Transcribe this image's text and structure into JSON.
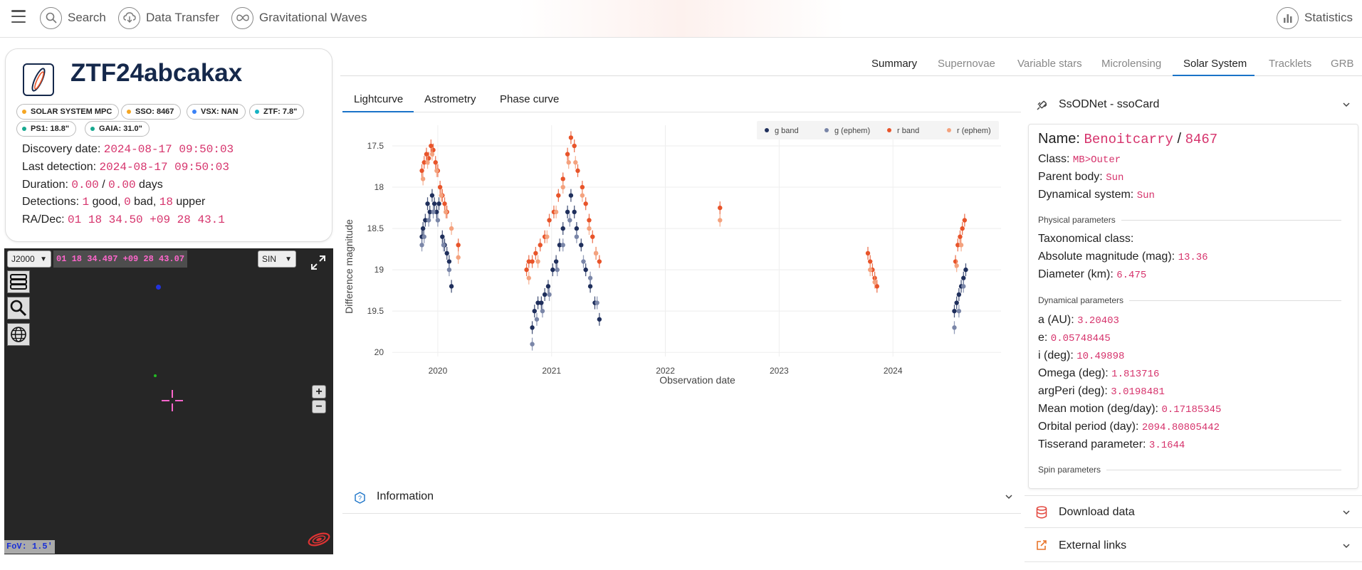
{
  "topnav": {
    "search_label": "Search",
    "data_transfer_label": "Data Transfer",
    "gw_label": "Gravitational Waves",
    "statistics_label": "Statistics"
  },
  "object": {
    "name": "ZTF24abcakax",
    "badges": [
      {
        "label": "SOLAR SYSTEM MPC",
        "color": "#f5a623"
      },
      {
        "label": "SSO: 8467",
        "color": "#f5a623"
      },
      {
        "label": "VSX: NAN",
        "color": "#3b82f6"
      },
      {
        "label": "ZTF: 7.8\"",
        "color": "#17b3c4"
      },
      {
        "label": "PS1: 18.8\"",
        "color": "#17a88f"
      },
      {
        "label": "GAIA: 31.0\"",
        "color": "#17a88f"
      }
    ],
    "discovery_label": "Discovery date:",
    "discovery_value": "2024-08-17 09:50:03",
    "last_label": "Last detection:",
    "last_value": "2024-08-17 09:50:03",
    "duration_label": "Duration:",
    "duration_a": "0.00",
    "duration_sep": "/",
    "duration_b": "0.00",
    "duration_unit": "days",
    "detections_label": "Detections:",
    "det_good": "1",
    "det_good_label": "good,",
    "det_bad": "0",
    "det_bad_label": "bad,",
    "det_upper": "18",
    "det_upper_label": "upper",
    "radec_label": "RA/Dec:",
    "radec_value": "01 18 34.50 +09 28 43.1"
  },
  "aladin": {
    "frame": "J2000",
    "coords": "01 18 34.497 +09 28 43.07",
    "projection": "SIN",
    "fov": "FoV: 1.5'",
    "zoom_in": "+",
    "zoom_out": "−"
  },
  "tabs": [
    "Summary",
    "Supernovae",
    "Variable stars",
    "Microlensing",
    "Solar System",
    "Tracklets",
    "GRB"
  ],
  "active_tab": "Solar System",
  "subtabs": [
    "Lightcurve",
    "Astrometry",
    "Phase curve"
  ],
  "active_subtab": "Lightcurve",
  "chart_data": {
    "type": "scatter",
    "xlabel": "Observation date",
    "ylabel": "Difference magnitude",
    "x_ticks": [
      "2020",
      "2021",
      "2022",
      "2023",
      "2024"
    ],
    "y_ticks": [
      "17.5",
      "18",
      "18.5",
      "19",
      "19.5",
      "20"
    ],
    "ylim": [
      20.05,
      17.25
    ],
    "xlim": [
      2019.6,
      2024.95
    ],
    "y_reversed": true,
    "grid": true,
    "legend_position": "top-right",
    "series": [
      {
        "name": "g band",
        "color": "#1f2f5c",
        "points": [
          [
            2019.86,
            18.6
          ],
          [
            2019.87,
            18.5
          ],
          [
            2019.89,
            18.4
          ],
          [
            2019.91,
            18.2
          ],
          [
            2019.93,
            18.3
          ],
          [
            2019.95,
            18.1
          ],
          [
            2019.97,
            18.2
          ],
          [
            2019.99,
            18.3
          ],
          [
            2020.01,
            18.2
          ],
          [
            2020.04,
            18.6
          ],
          [
            2020.06,
            18.7
          ],
          [
            2020.08,
            18.8
          ],
          [
            2020.1,
            18.9
          ],
          [
            2020.12,
            19.2
          ],
          [
            2020.83,
            19.7
          ],
          [
            2020.85,
            19.5
          ],
          [
            2020.88,
            19.4
          ],
          [
            2020.91,
            19.4
          ],
          [
            2020.94,
            19.3
          ],
          [
            2020.97,
            19.2
          ],
          [
            2021.01,
            19.0
          ],
          [
            2021.04,
            18.9
          ],
          [
            2021.07,
            18.7
          ],
          [
            2021.1,
            18.5
          ],
          [
            2021.14,
            18.3
          ],
          [
            2021.17,
            18.1
          ],
          [
            2021.2,
            18.3
          ],
          [
            2021.22,
            18.5
          ],
          [
            2021.26,
            18.7
          ],
          [
            2021.3,
            19.0
          ],
          [
            2021.34,
            19.2
          ],
          [
            2021.38,
            19.4
          ],
          [
            2021.42,
            19.6
          ],
          [
            2024.54,
            19.5
          ],
          [
            2024.56,
            19.4
          ],
          [
            2024.58,
            19.3
          ],
          [
            2024.6,
            19.2
          ],
          [
            2024.62,
            19.1
          ],
          [
            2024.64,
            19.0
          ]
        ]
      },
      {
        "name": "g (ephem)",
        "color": "#7a86a8",
        "points": [
          [
            2019.86,
            18.7
          ],
          [
            2019.88,
            18.6
          ],
          [
            2019.92,
            18.4
          ],
          [
            2019.96,
            18.3
          ],
          [
            2020.0,
            18.4
          ],
          [
            2020.05,
            18.7
          ],
          [
            2020.1,
            19.0
          ],
          [
            2020.83,
            19.9
          ],
          [
            2020.87,
            19.6
          ],
          [
            2020.92,
            19.5
          ],
          [
            2020.98,
            19.3
          ],
          [
            2021.05,
            19.0
          ],
          [
            2021.1,
            18.7
          ],
          [
            2021.16,
            18.4
          ],
          [
            2021.22,
            18.6
          ],
          [
            2021.28,
            18.9
          ],
          [
            2021.34,
            19.1
          ],
          [
            2021.4,
            19.4
          ],
          [
            2024.54,
            19.7
          ],
          [
            2024.58,
            19.5
          ],
          [
            2024.62,
            19.2
          ]
        ]
      },
      {
        "name": "r band",
        "color": "#e8542a",
        "points": [
          [
            2019.86,
            17.8
          ],
          [
            2019.88,
            17.7
          ],
          [
            2019.9,
            17.6
          ],
          [
            2019.92,
            17.65
          ],
          [
            2019.94,
            17.5
          ],
          [
            2019.96,
            17.55
          ],
          [
            2019.98,
            17.7
          ],
          [
            2020.0,
            17.8
          ],
          [
            2020.02,
            18.0
          ],
          [
            2020.04,
            18.1
          ],
          [
            2020.06,
            18.2
          ],
          [
            2020.08,
            18.3
          ],
          [
            2020.18,
            18.7
          ],
          [
            2020.78,
            19.0
          ],
          [
            2020.8,
            18.9
          ],
          [
            2020.83,
            18.9
          ],
          [
            2020.86,
            18.8
          ],
          [
            2020.9,
            18.7
          ],
          [
            2020.94,
            18.6
          ],
          [
            2020.98,
            18.4
          ],
          [
            2021.02,
            18.3
          ],
          [
            2021.06,
            18.1
          ],
          [
            2021.1,
            17.9
          ],
          [
            2021.14,
            17.6
          ],
          [
            2021.17,
            17.4
          ],
          [
            2021.2,
            17.5
          ],
          [
            2021.23,
            17.8
          ],
          [
            2021.27,
            18.0
          ],
          [
            2021.3,
            18.2
          ],
          [
            2021.33,
            18.4
          ],
          [
            2021.36,
            18.6
          ],
          [
            2021.39,
            18.8
          ],
          [
            2021.42,
            18.9
          ],
          [
            2022.48,
            18.25
          ],
          [
            2023.78,
            18.8
          ],
          [
            2023.8,
            18.9
          ],
          [
            2023.82,
            19.0
          ],
          [
            2023.84,
            19.1
          ],
          [
            2023.86,
            19.2
          ],
          [
            2024.55,
            18.9
          ],
          [
            2024.57,
            18.7
          ],
          [
            2024.59,
            18.6
          ],
          [
            2024.61,
            18.5
          ],
          [
            2024.63,
            18.4
          ]
        ]
      },
      {
        "name": "r (ephem)",
        "color": "#f4a27e",
        "points": [
          [
            2019.87,
            17.9
          ],
          [
            2019.91,
            17.7
          ],
          [
            2019.95,
            17.6
          ],
          [
            2019.99,
            17.8
          ],
          [
            2020.03,
            18.1
          ],
          [
            2020.07,
            18.3
          ],
          [
            2020.12,
            18.5
          ],
          [
            2020.18,
            18.85
          ],
          [
            2020.8,
            19.1
          ],
          [
            2020.88,
            18.9
          ],
          [
            2020.96,
            18.6
          ],
          [
            2021.04,
            18.3
          ],
          [
            2021.1,
            18.0
          ],
          [
            2021.15,
            17.7
          ],
          [
            2021.21,
            17.7
          ],
          [
            2021.27,
            18.1
          ],
          [
            2021.33,
            18.5
          ],
          [
            2021.39,
            18.8
          ],
          [
            2022.48,
            18.4
          ],
          [
            2023.8,
            19.0
          ],
          [
            2023.84,
            19.15
          ],
          [
            2024.56,
            18.95
          ],
          [
            2024.6,
            18.7
          ]
        ]
      }
    ]
  },
  "info_section_label": "Information",
  "ssocard": {
    "header": "SsODNet - ssoCard",
    "name_label": "Name:",
    "name_value": "Benoitcarry",
    "name_sep": "/",
    "number_value": "8467",
    "class_label": "Class:",
    "class_value": "MB>Outer",
    "parent_label": "Parent body:",
    "parent_value": "Sun",
    "dyn_label": "Dynamical system:",
    "dyn_value": "Sun",
    "physical_header": "Physical parameters",
    "taxo_label": "Taxonomical class:",
    "absmag_label": "Absolute magnitude (mag):",
    "absmag_value": "13.36",
    "diam_label": "Diameter (km):",
    "diam_value": "6.475",
    "dynamical_header": "Dynamical parameters",
    "a_label": "a (AU):",
    "a_value": "3.20403",
    "e_label": "e:",
    "e_value": "0.05748445",
    "i_label": "i (deg):",
    "i_value": "10.49898",
    "omega_label": "Omega (deg):",
    "omega_value": "1.813716",
    "argperi_label": "argPeri (deg):",
    "argperi_value": "3.0198481",
    "mm_label": "Mean motion (deg/day):",
    "mm_value": "0.17185345",
    "period_label": "Orbital period (day):",
    "period_value": "2094.80805442",
    "tiss_label": "Tisserand parameter:",
    "tiss_value": "3.1644",
    "spin_header": "Spin parameters"
  },
  "download_label": "Download data",
  "links_label": "External links"
}
